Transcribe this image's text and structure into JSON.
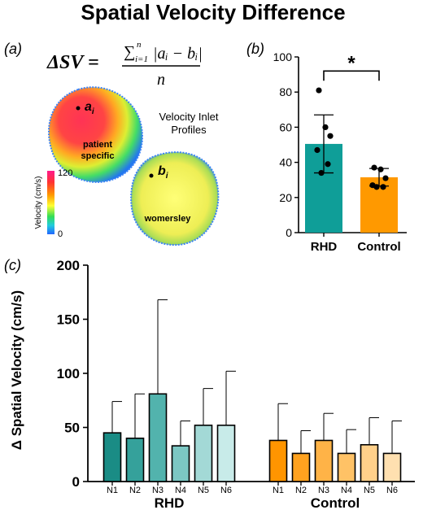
{
  "figure": {
    "title": "Spatial Velocity Difference"
  },
  "panel_a": {
    "label": "(a)",
    "formula": {
      "lhs": "ΔSV =",
      "sum": "∑",
      "sum_upper": "n",
      "sum_lower": "i=1",
      "numerator": "|aᵢ − bᵢ|",
      "denominator": "n"
    },
    "caption_line1": "Velocity Inlet",
    "caption_line2": "Profiles",
    "point_a": "a",
    "point_a_sub": "i",
    "point_b": "b",
    "point_b_sub": "i",
    "patient_label_line1": "patient",
    "patient_label_line2": "specific",
    "womersley_label": "womersley",
    "colorbar": {
      "title": "Velocity (cm/s)",
      "max": "120",
      "min": "0",
      "colors": [
        "#ff1a8c",
        "#ff3333",
        "#ff9900",
        "#ffff33",
        "#33dd55",
        "#22ccdd",
        "#2266ff"
      ]
    }
  },
  "chart_data": [
    {
      "panel": "(b)",
      "type": "bar",
      "categories": [
        "RHD",
        "Control"
      ],
      "values": [
        50.5,
        31.5
      ],
      "error": [
        16.5,
        5
      ],
      "points": [
        [
          81,
          60,
          55,
          47,
          39,
          34
        ],
        [
          37,
          36,
          31,
          27,
          26,
          26
        ]
      ],
      "colors": [
        "#0f9e98",
        "#ff9900"
      ],
      "ylim": [
        0,
        100
      ],
      "yticks": [
        0,
        20,
        40,
        60,
        80,
        100
      ],
      "significance": "*"
    },
    {
      "panel": "(c)",
      "type": "bar",
      "ylabel": "Δ Spatial Velocity  (cm/s)",
      "ylim": [
        0,
        200
      ],
      "yticks": [
        0,
        50,
        100,
        150,
        200
      ],
      "groups": [
        {
          "name": "RHD",
          "categories": [
            "N1",
            "N2",
            "N3",
            "N4",
            "N5",
            "N6"
          ],
          "values": [
            45,
            40,
            81,
            33,
            52,
            52
          ],
          "error": [
            29,
            41,
            87,
            23,
            34,
            50
          ],
          "colors": [
            "#1a8c85",
            "#35a19b",
            "#52b3ad",
            "#7cc7c3",
            "#a3d9d6",
            "#c8ebe9"
          ]
        },
        {
          "name": "Control",
          "categories": [
            "N1",
            "N2",
            "N3",
            "N4",
            "N5",
            "N6"
          ],
          "values": [
            38,
            26,
            38,
            26,
            34,
            26
          ],
          "error": [
            34,
            21,
            25,
            22,
            25,
            30
          ],
          "colors": [
            "#ff9500",
            "#ffa21f",
            "#ffb347",
            "#ffc266",
            "#ffd08a",
            "#ffe0b0"
          ]
        }
      ]
    }
  ]
}
